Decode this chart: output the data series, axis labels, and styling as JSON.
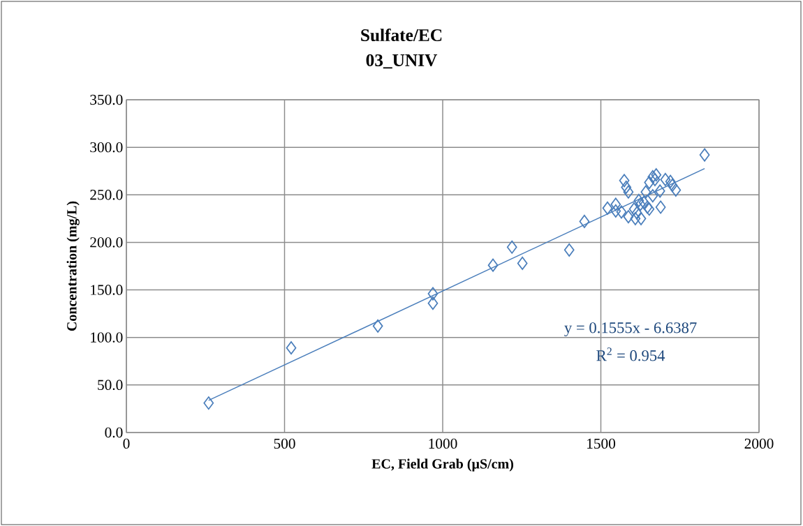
{
  "chart_data": {
    "type": "scatter",
    "title": "Sulfate/EC",
    "subtitle": "03_UNIV",
    "xlabel": "EC, Field Grab (µS/cm)",
    "ylabel": "Concentration (mg/L)",
    "series": [
      {
        "color": "#4a7ebb",
        "x": [
          260,
          521,
          795,
          969,
          969,
          1159,
          1219,
          1252,
          1400,
          1448,
          1828,
          1574,
          1580,
          1587,
          1521,
          1547,
          1547,
          1565,
          1587,
          1609,
          1627,
          1605,
          1625,
          1636,
          1647,
          1653,
          1642,
          1653,
          1664,
          1675,
          1671,
          1664,
          1687,
          1704,
          1720,
          1726,
          1737,
          1689,
          1620,
          1614
        ],
        "values": [
          31,
          89,
          112,
          146,
          136,
          176,
          195,
          178,
          192,
          222,
          292,
          265,
          258,
          253,
          236,
          240,
          233,
          232,
          227,
          225,
          225,
          235,
          240,
          242,
          237,
          235,
          253,
          263,
          269,
          271,
          266,
          249,
          254,
          266,
          264,
          260,
          255,
          237,
          244,
          231
        ]
      },
      {
        "type": "line",
        "marker": "none",
        "color": "#4a7ebb",
        "x": [
          260,
          1828
        ],
        "values": [
          33.8,
          277.6
        ]
      }
    ],
    "xlim": [
      0,
      2000
    ],
    "xticks": [
      0,
      500,
      1000,
      1500,
      2000
    ],
    "ylim": [
      0,
      350
    ],
    "yticks": [
      {
        "value": 0,
        "label": "0.0"
      },
      {
        "value": 50,
        "label": "50.0"
      },
      {
        "value": 100,
        "label": "100.0"
      },
      {
        "value": 150,
        "label": "150.0"
      },
      {
        "value": 200,
        "label": "200.0"
      },
      {
        "value": 250,
        "label": "250.0"
      },
      {
        "value": 300,
        "label": "300.0"
      },
      {
        "value": 350,
        "label": "350.0"
      }
    ],
    "grid": true,
    "marker": "diamond",
    "annotations": [
      "y = 0.1555x - 6.6387",
      "R$^{2}$ = 0.954"
    ]
  }
}
